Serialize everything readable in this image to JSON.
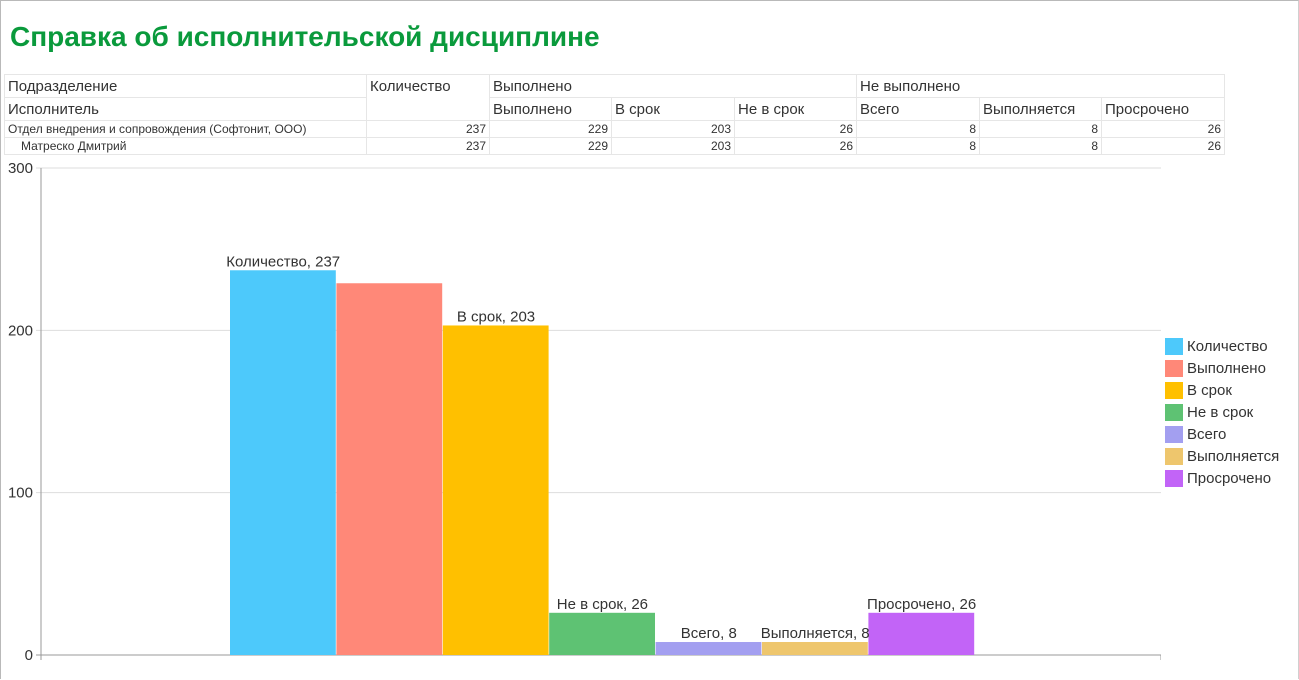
{
  "title": "Справка об исполнительской дисциплине",
  "table": {
    "header_row1": [
      "Подразделение",
      "Количество",
      "Выполнено",
      "Не выполнено"
    ],
    "header_row2": [
      "Исполнитель",
      "Выполнено",
      "В срок",
      "Не в срок",
      "Всего",
      "Выполняется",
      "Просрочено"
    ],
    "rows": [
      {
        "name": "Отдел внедрения и сопровождения (Софтонит, ООО)",
        "values": [
          "237",
          "229",
          "203",
          "26",
          "8",
          "8",
          "26"
        ]
      },
      {
        "name": "Матреско Дмитрий",
        "values": [
          "237",
          "229",
          "203",
          "26",
          "8",
          "8",
          "26"
        ]
      }
    ]
  },
  "chart_data": {
    "type": "bar",
    "categories": [
      "Количество",
      "Выполнено",
      "В срок",
      "Не в срок",
      "Всего",
      "Выполняется",
      "Просрочено"
    ],
    "values": [
      237,
      229,
      203,
      26,
      8,
      8,
      26
    ],
    "colors": [
      "#4dc9fb",
      "#ff8878",
      "#ffc000",
      "#5ec273",
      "#a39ff0",
      "#eec66d",
      "#c264f7"
    ],
    "data_labels": [
      "Количество, 237",
      "",
      "В срок, 203",
      "Не в срок, 26",
      "Всего, 8",
      "Выполняется, 8",
      "Просрочено, 26"
    ],
    "ylim": [
      0,
      300
    ],
    "yticks": [
      "0",
      "100",
      "200",
      "300"
    ],
    "grid": true,
    "legend": "right"
  }
}
